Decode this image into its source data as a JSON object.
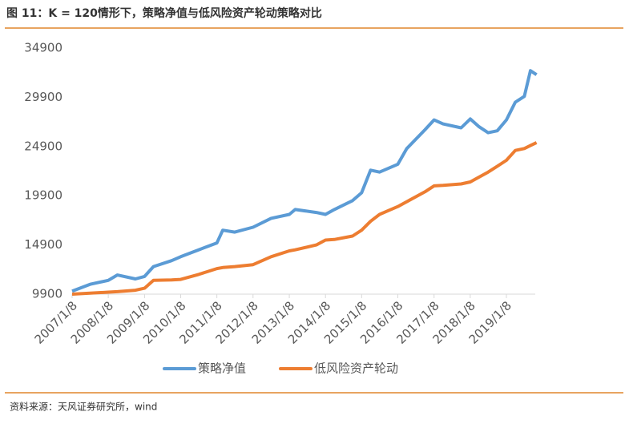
{
  "chart_data": {
    "type": "line",
    "title": "图 11：K = 120情形下，策略净值与低风险资产轮动策略对比",
    "source": "资料来源：天风证券研究所，wind",
    "x": [
      "2007/1/8",
      "2007/7/8",
      "2008/1/8",
      "2008/4/8",
      "2008/10/8",
      "2009/1/8",
      "2009/4/8",
      "2009/10/8",
      "2010/1/8",
      "2010/7/8",
      "2011/1/8",
      "2011/3/8",
      "2011/7/8",
      "2012/1/8",
      "2012/7/8",
      "2013/1/8",
      "2013/3/8",
      "2013/10/8",
      "2014/1/8",
      "2014/4/8",
      "2014/10/8",
      "2015/1/8",
      "2015/4/8",
      "2015/7/8",
      "2015/10/8",
      "2016/1/8",
      "2016/4/8",
      "2016/10/8",
      "2017/1/8",
      "2017/4/8",
      "2017/10/8",
      "2018/1/8",
      "2018/4/8",
      "2018/7/8",
      "2018/10/8",
      "2019/1/8",
      "2019/4/8",
      "2019/7/8",
      "2019/9/8",
      "2019/11/8"
    ],
    "series": [
      {
        "name": "策略净值",
        "color": "#5b9bd5",
        "values": [
          10200,
          10900,
          11300,
          11850,
          11450,
          11700,
          12700,
          13300,
          13700,
          14400,
          15100,
          16400,
          16200,
          16700,
          17600,
          18000,
          18500,
          18200,
          18000,
          18500,
          19400,
          20200,
          22500,
          22300,
          22700,
          23100,
          24700,
          26600,
          27600,
          27200,
          26800,
          27700,
          26900,
          26300,
          26500,
          27600,
          29400,
          30000,
          32600,
          32200
        ]
      },
      {
        "name": "低风险资产轮动",
        "color": "#ed7d31",
        "values": [
          9900,
          10000,
          10100,
          10150,
          10300,
          10500,
          11300,
          11350,
          11400,
          11900,
          12500,
          12600,
          12700,
          12900,
          13700,
          14300,
          14400,
          14900,
          15400,
          15450,
          15800,
          16400,
          17300,
          18000,
          18400,
          18800,
          19300,
          20300,
          20900,
          20950,
          21100,
          21300,
          21800,
          22300,
          22900,
          23500,
          24500,
          24700,
          25000,
          25300
        ]
      }
    ],
    "xticks": [
      "2007/1/8",
      "2008/1/8",
      "2009/1/8",
      "2010/1/8",
      "2011/1/8",
      "2012/1/8",
      "2013/1/8",
      "2014/1/8",
      "2015/1/8",
      "2016/1/8",
      "2017/1/8",
      "2018/1/8",
      "2019/1/8"
    ],
    "ylim": [
      9900,
      34900
    ],
    "yticks": [
      9900,
      14900,
      19900,
      24900,
      29900,
      34900
    ],
    "grid": false
  }
}
